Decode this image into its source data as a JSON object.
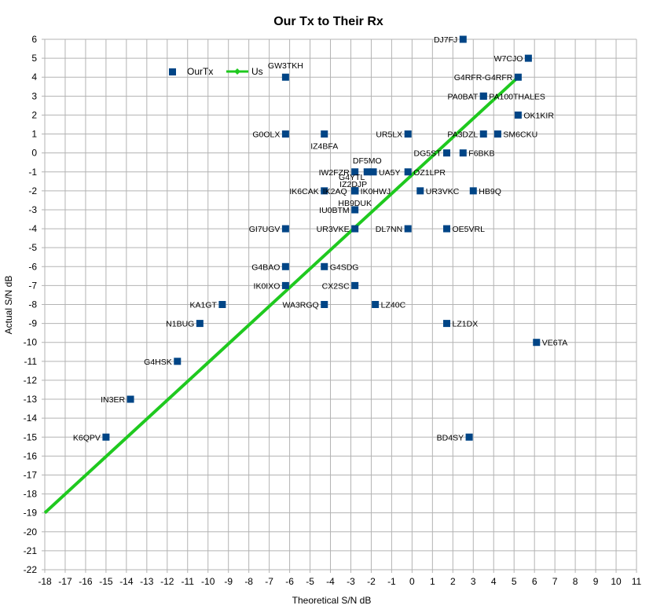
{
  "chart_data": {
    "type": "scatter",
    "title": "Our Tx to Their Rx",
    "xlabel": "Theoretical S/N  dB",
    "ylabel": "Actual S/N dB",
    "xlim": [
      -18,
      11
    ],
    "ylim": [
      -22,
      6
    ],
    "grid": true,
    "legend_position": "top-left",
    "colors": {
      "scatter": "#004586",
      "line": "#1fc91f"
    },
    "series": [
      {
        "name": "OurTx",
        "kind": "scatter",
        "points": [
          {
            "label": "DJ7FJ",
            "x": 2.5,
            "y": 6
          },
          {
            "label": "W7CJO",
            "x": 5.7,
            "y": 5
          },
          {
            "label": "GW3TKH",
            "x": -6.2,
            "y": 4
          },
          {
            "label": "G4RFR-G4RFR",
            "x": 5.2,
            "y": 4
          },
          {
            "label": "PA0BAT",
            "x": 3.5,
            "y": 3
          },
          {
            "label": "PA100THALES",
            "x": 3.5,
            "y": 3
          },
          {
            "label": "OK1KIR",
            "x": 5.2,
            "y": 2
          },
          {
            "label": "G0OLX",
            "x": -6.2,
            "y": 1
          },
          {
            "label": "IZ4BFA",
            "x": -4.3,
            "y": 1
          },
          {
            "label": "UR5LX",
            "x": -0.2,
            "y": 1
          },
          {
            "label": "PA3DZL",
            "x": 3.5,
            "y": 1
          },
          {
            "label": "SM6CKU",
            "x": 4.2,
            "y": 1
          },
          {
            "label": "DG5ST",
            "x": 1.7,
            "y": 0
          },
          {
            "label": "F6BKB",
            "x": 2.5,
            "y": 0
          },
          {
            "label": "DF5MO",
            "x": -2.2,
            "y": -1
          },
          {
            "label": "IW2FZR",
            "x": -2.8,
            "y": -1
          },
          {
            "label": "UA5Y",
            "x": -1.9,
            "y": -1
          },
          {
            "label": "OZ1LPR",
            "x": -0.2,
            "y": -1
          },
          {
            "label": "G4YTL",
            "x": -2.8,
            "y": -2
          },
          {
            "label": "IZ2DJP",
            "x": -2.8,
            "y": -2
          },
          {
            "label": "IK6CAK",
            "x": -4.3,
            "y": -2
          },
          {
            "label": "IK2AQ",
            "x": -2.8,
            "y": -2
          },
          {
            "label": "IK0HWJ",
            "x": -2.8,
            "y": -2
          },
          {
            "label": "UR3VKC",
            "x": 0.4,
            "y": -2
          },
          {
            "label": "HB9Q",
            "x": 3.0,
            "y": -2
          },
          {
            "label": "HB9DUK",
            "x": -2.8,
            "y": -2
          },
          {
            "label": "IU0BTM",
            "x": -2.8,
            "y": -3
          },
          {
            "label": "GI7UGV",
            "x": -6.2,
            "y": -4
          },
          {
            "label": "UR3VKE",
            "x": -2.8,
            "y": -4
          },
          {
            "label": "DL7NN",
            "x": -0.2,
            "y": -4
          },
          {
            "label": "OE5VRL",
            "x": 1.7,
            "y": -4
          },
          {
            "label": "G4BAO",
            "x": -6.2,
            "y": -6
          },
          {
            "label": "G4SDG",
            "x": -4.3,
            "y": -6
          },
          {
            "label": "IK0IXO",
            "x": -6.2,
            "y": -7
          },
          {
            "label": "CX2SC",
            "x": -2.8,
            "y": -7
          },
          {
            "label": "KA1GT",
            "x": -9.3,
            "y": -8
          },
          {
            "label": "WA3RGQ",
            "x": -4.3,
            "y": -8
          },
          {
            "label": "LZ40C",
            "x": -1.8,
            "y": -8
          },
          {
            "label": "N1BUG",
            "x": -10.4,
            "y": -9
          },
          {
            "label": "LZ1DX",
            "x": 1.7,
            "y": -9
          },
          {
            "label": "VE6TA",
            "x": 6.1,
            "y": -10
          },
          {
            "label": "G4HSK",
            "x": -11.5,
            "y": -11
          },
          {
            "label": "IN3ER",
            "x": -13.8,
            "y": -13
          },
          {
            "label": "K6QPV",
            "x": -15.0,
            "y": -15
          },
          {
            "label": "BD4SY",
            "x": 2.8,
            "y": -15
          }
        ]
      },
      {
        "name": "Us",
        "kind": "line",
        "points": [
          {
            "x": -18,
            "y": -19
          },
          {
            "x": 5.2,
            "y": 4
          }
        ]
      }
    ]
  }
}
